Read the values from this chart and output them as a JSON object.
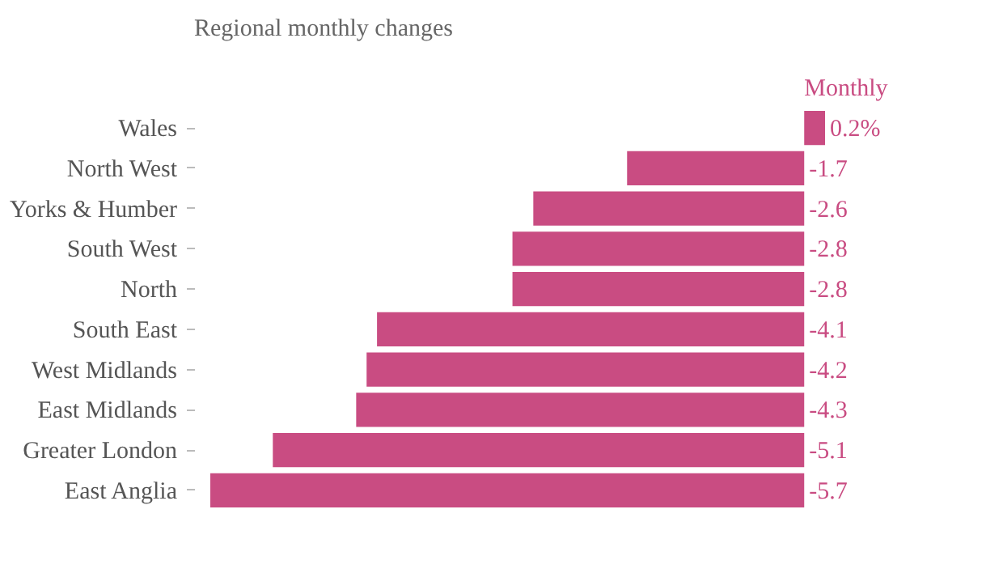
{
  "chart_data": {
    "type": "bar",
    "orientation": "horizontal",
    "title": "Regional monthly changes",
    "categories": [
      "Wales",
      "North West",
      "Yorks & Humber",
      "South West",
      "North",
      "South East",
      "West Midlands",
      "East Midlands",
      "Greater London",
      "East Anglia"
    ],
    "series": [
      {
        "name": "Monthly",
        "color": "#c94c82",
        "values": [
          0.2,
          -1.7,
          -2.6,
          -2.8,
          -2.8,
          -4.1,
          -4.2,
          -4.3,
          -5.1,
          -5.7
        ],
        "value_labels": [
          "0.2%",
          "-1.7",
          "-2.6",
          "-2.8",
          "-2.8",
          "-4.1",
          "-4.2",
          "-4.3",
          "-5.1",
          "-5.7"
        ]
      }
    ],
    "tick_labels": "y",
    "grid": false
  }
}
